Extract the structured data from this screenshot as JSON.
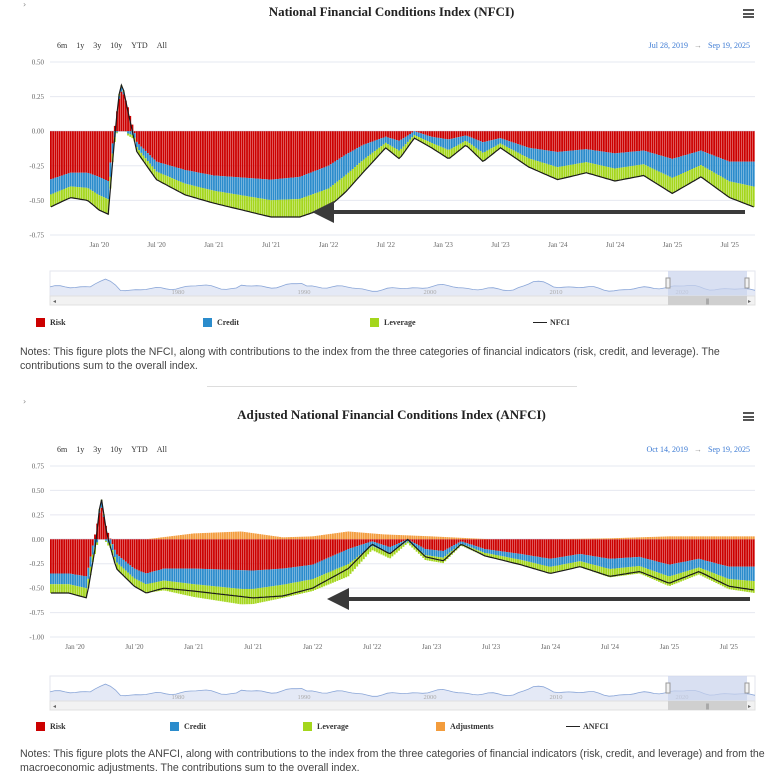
{
  "panels": [
    {
      "id": "nfci",
      "title": "National Financial Conditions Index (NFCI)",
      "range_buttons": [
        "6m",
        "1y",
        "3y",
        "10y",
        "YTD",
        "All"
      ],
      "date_from": "Jul 28, 2019",
      "date_arrow": "→",
      "date_to": "Sep 19, 2025",
      "legend": [
        {
          "label": "Risk",
          "color": "#cc0000"
        },
        {
          "label": "Credit",
          "color": "#2b8ccc"
        },
        {
          "label": "Leverage",
          "color": "#a4d61c"
        },
        {
          "label": "NFCI",
          "line": true
        }
      ],
      "navigator_labels": [
        "1980",
        "1990",
        "2000",
        "2010",
        "2020"
      ],
      "notes": "Notes: This figure plots the NFCI, along with contributions to the index from the three categories of financial indicators (risk, credit, and leverage). The contributions sum to the overall index."
    },
    {
      "id": "anfci",
      "title": "Adjusted National Financial Conditions Index (ANFCI)",
      "range_buttons": [
        "6m",
        "1y",
        "3y",
        "10y",
        "YTD",
        "All"
      ],
      "date_from": "Oct 14, 2019",
      "date_arrow": "→",
      "date_to": "Sep 19, 2025",
      "legend": [
        {
          "label": "Risk",
          "color": "#cc0000"
        },
        {
          "label": "Credit",
          "color": "#2b8ccc"
        },
        {
          "label": "Leverage",
          "color": "#a4d61c"
        },
        {
          "label": "Adjustments",
          "color": "#f39c3c"
        },
        {
          "label": "ANFCI",
          "line": true
        }
      ],
      "navigator_labels": [
        "1980",
        "1990",
        "2000",
        "2010",
        "2020"
      ],
      "notes": "Notes: This figure plots the ANFCI, along with contributions to the index from the three categories of financial indicators (risk, credit, and leverage) and from the macroeconomic adjustments. The contributions sum to the overall index."
    }
  ],
  "chart_data": [
    {
      "type": "bar",
      "title": "National Financial Conditions Index (NFCI)",
      "stacked": true,
      "x_ticks": [
        "Jan '20",
        "Jul '20",
        "Jan '21",
        "Jul '21",
        "Jan '22",
        "Jul '22",
        "Jan '23",
        "Jul '23",
        "Jan '24",
        "Jul '24",
        "Jan '25",
        "Jul '25"
      ],
      "y_ticks": [
        "0.50",
        "0.25",
        "0.00",
        "-0.25",
        "-0.50",
        "-0.75"
      ],
      "ylim": [
        -0.75,
        0.5
      ],
      "x_range": [
        2019.57,
        2025.72
      ],
      "keys": [
        [
          2019.57,
          -0.35,
          -0.55
        ],
        [
          2019.75,
          -0.3,
          -0.48
        ],
        [
          2019.9,
          -0.3,
          -0.5
        ],
        [
          2020.0,
          -0.33,
          -0.57
        ],
        [
          2020.08,
          -0.36,
          -0.6
        ],
        [
          2020.13,
          0.0,
          -0.1
        ],
        [
          2020.17,
          0.22,
          0.25
        ],
        [
          2020.2,
          0.3,
          0.35
        ],
        [
          2020.25,
          0.18,
          0.15
        ],
        [
          2020.33,
          -0.08,
          -0.15
        ],
        [
          2020.5,
          -0.22,
          -0.35
        ],
        [
          2020.75,
          -0.28,
          -0.46
        ],
        [
          2021.0,
          -0.32,
          -0.52
        ],
        [
          2021.5,
          -0.35,
          -0.62
        ],
        [
          2021.75,
          -0.33,
          -0.62
        ],
        [
          2022.0,
          -0.25,
          -0.55
        ],
        [
          2022.15,
          -0.17,
          -0.44
        ],
        [
          2022.3,
          -0.1,
          -0.3
        ],
        [
          2022.5,
          -0.04,
          -0.12
        ],
        [
          2022.62,
          -0.07,
          -0.2
        ],
        [
          2022.75,
          0.0,
          -0.05
        ],
        [
          2022.9,
          -0.04,
          -0.12
        ],
        [
          2023.05,
          -0.06,
          -0.2
        ],
        [
          2023.2,
          -0.03,
          -0.1
        ],
        [
          2023.35,
          -0.08,
          -0.22
        ],
        [
          2023.5,
          -0.05,
          -0.12
        ],
        [
          2023.75,
          -0.12,
          -0.26
        ],
        [
          2024.0,
          -0.15,
          -0.35
        ],
        [
          2024.25,
          -0.13,
          -0.3
        ],
        [
          2024.5,
          -0.16,
          -0.36
        ],
        [
          2024.75,
          -0.14,
          -0.32
        ],
        [
          2025.0,
          -0.2,
          -0.45
        ],
        [
          2025.25,
          -0.14,
          -0.33
        ],
        [
          2025.5,
          -0.22,
          -0.48
        ],
        [
          2025.72,
          -0.22,
          -0.55
        ]
      ],
      "series": [
        {
          "name": "Risk",
          "color": "#cc0000"
        },
        {
          "name": "Credit",
          "color": "#2b8ccc"
        },
        {
          "name": "Leverage",
          "color": "#a4d61c"
        },
        {
          "name": "NFCI",
          "color": "#222222",
          "kind": "line"
        }
      ],
      "annotation": "arrow pointing left toward Jan '22"
    },
    {
      "type": "bar",
      "title": "Adjusted National Financial Conditions Index (ANFCI)",
      "stacked": true,
      "x_ticks": [
        "Jan '20",
        "Jul '20",
        "Jan '21",
        "Jul '21",
        "Jan '22",
        "Jul '22",
        "Jan '23",
        "Jul '23",
        "Jan '24",
        "Jul '24",
        "Jan '25",
        "Jul '25"
      ],
      "y_ticks": [
        "0.75",
        "0.50",
        "0.25",
        "0.00",
        "-0.25",
        "-0.50",
        "-0.75",
        "-1.00"
      ],
      "ylim": [
        -1.0,
        0.75
      ],
      "x_range": [
        2019.79,
        2025.72
      ],
      "keys": [
        [
          2019.79,
          -0.35,
          -0.55
        ],
        [
          2019.95,
          -0.35,
          -0.55
        ],
        [
          2020.1,
          -0.38,
          -0.6
        ],
        [
          2020.17,
          0.05,
          -0.1
        ],
        [
          2020.22,
          0.35,
          0.45
        ],
        [
          2020.27,
          0.1,
          0.05
        ],
        [
          2020.35,
          -0.15,
          -0.3
        ],
        [
          2020.5,
          -0.3,
          -0.48
        ],
        [
          2020.6,
          -0.35,
          -0.55
        ],
        [
          2020.75,
          -0.3,
          -0.5
        ],
        [
          2021.0,
          -0.3,
          -0.53
        ],
        [
          2021.5,
          -0.32,
          -0.6
        ],
        [
          2021.75,
          -0.3,
          -0.58
        ],
        [
          2022.0,
          -0.26,
          -0.5
        ],
        [
          2022.3,
          -0.1,
          -0.3
        ],
        [
          2022.5,
          -0.02,
          -0.05
        ],
        [
          2022.65,
          -0.08,
          -0.15
        ],
        [
          2022.8,
          0.0,
          0.0
        ],
        [
          2022.95,
          -0.1,
          -0.18
        ],
        [
          2023.1,
          -0.12,
          -0.22
        ],
        [
          2023.25,
          -0.02,
          -0.05
        ],
        [
          2023.45,
          -0.1,
          -0.17
        ],
        [
          2023.75,
          -0.15,
          -0.26
        ],
        [
          2024.0,
          -0.2,
          -0.35
        ],
        [
          2024.25,
          -0.15,
          -0.28
        ],
        [
          2024.5,
          -0.2,
          -0.38
        ],
        [
          2024.75,
          -0.18,
          -0.33
        ],
        [
          2025.0,
          -0.26,
          -0.45
        ],
        [
          2025.25,
          -0.2,
          -0.33
        ],
        [
          2025.5,
          -0.28,
          -0.48
        ],
        [
          2025.72,
          -0.28,
          -0.52
        ]
      ],
      "adjustment_keys": [
        [
          2019.79,
          0.0
        ],
        [
          2020.6,
          0.0
        ],
        [
          2021.0,
          0.06
        ],
        [
          2021.4,
          0.08
        ],
        [
          2021.75,
          0.02
        ],
        [
          2022.0,
          0.03
        ],
        [
          2022.3,
          0.08
        ],
        [
          2022.6,
          0.05
        ],
        [
          2023.0,
          0.03
        ],
        [
          2023.5,
          0.0
        ],
        [
          2024.0,
          0.0
        ],
        [
          2024.5,
          0.01
        ],
        [
          2025.0,
          0.03
        ],
        [
          2025.72,
          0.03
        ]
      ],
      "series": [
        {
          "name": "Risk",
          "color": "#cc0000"
        },
        {
          "name": "Credit",
          "color": "#2b8ccc"
        },
        {
          "name": "Leverage",
          "color": "#a4d61c"
        },
        {
          "name": "Adjustments",
          "color": "#f39c3c"
        },
        {
          "name": "ANFCI",
          "color": "#222222",
          "kind": "line"
        }
      ],
      "annotation": "arrow pointing left toward Jul '22"
    }
  ]
}
